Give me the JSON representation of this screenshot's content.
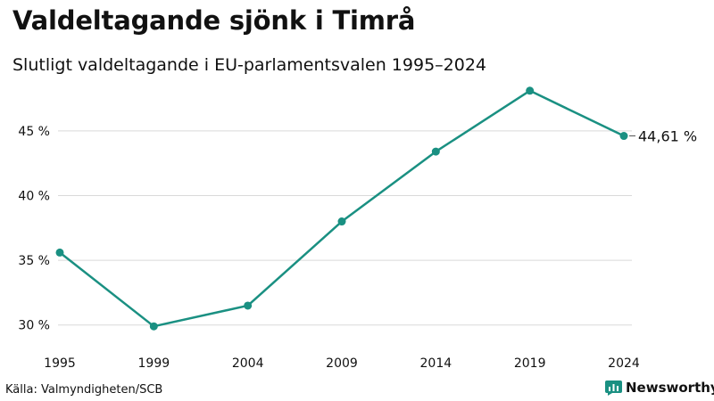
{
  "header": {
    "title": "Valdeltagande sjönk i Timrå",
    "subtitle": "Slutligt valdeltagande i EU-parlamentsvalen 1995–2024"
  },
  "footer": {
    "source": "Källa: Valmyndigheten/SCB",
    "brand": "Newsworthy",
    "brand_icon": "newsworthy-logo-icon"
  },
  "colors": {
    "line": "#1a9082",
    "grid": "#d9d9d9",
    "text": "#111111",
    "brand_icon": "#1a9082"
  },
  "chart_data": {
    "type": "line",
    "title": "Valdeltagande sjönk i Timrå",
    "subtitle": "Slutligt valdeltagande i EU-parlamentsvalen 1995–2024",
    "xlabel": "",
    "ylabel": "",
    "categories": [
      "1995",
      "1999",
      "2004",
      "2009",
      "2014",
      "2019",
      "2024"
    ],
    "series": [
      {
        "name": "Valdeltagande",
        "values": [
          35.6,
          29.9,
          31.5,
          38.0,
          43.4,
          48.1,
          44.61
        ]
      }
    ],
    "ylim": [
      29.5,
      48.5
    ],
    "yticks": [
      30,
      35,
      40,
      45
    ],
    "ytick_labels": [
      "30 %",
      "35 %",
      "40 %",
      "45 %"
    ],
    "grid": true,
    "annotation": {
      "category": "2024",
      "text": "44,61 %"
    }
  }
}
